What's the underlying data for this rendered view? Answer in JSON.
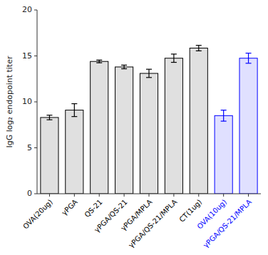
{
  "chart_data": {
    "type": "bar",
    "categories": [
      "OVA(20ug)",
      "γPGA",
      "QS-21",
      "γPGA/QS-21",
      "γPGA/MPLA",
      "γPGA/QS-21/MPLA",
      "CT(1ug)",
      "OVA(10ug)",
      "γPGA/QS-21/MPLA"
    ],
    "values": [
      8.3,
      9.1,
      14.4,
      13.8,
      13.1,
      14.75,
      15.85,
      8.5,
      14.75
    ],
    "errors": [
      0.25,
      0.7,
      0.15,
      0.2,
      0.45,
      0.45,
      0.3,
      0.6,
      0.55
    ],
    "colors": [
      "black",
      "black",
      "black",
      "black",
      "black",
      "black",
      "black",
      "blue",
      "blue"
    ],
    "ylabel": "IgG log₂ endopoint titer",
    "ylim": [
      0,
      20
    ],
    "yticks": [
      0,
      5,
      10,
      15,
      20
    ],
    "grid": false
  }
}
